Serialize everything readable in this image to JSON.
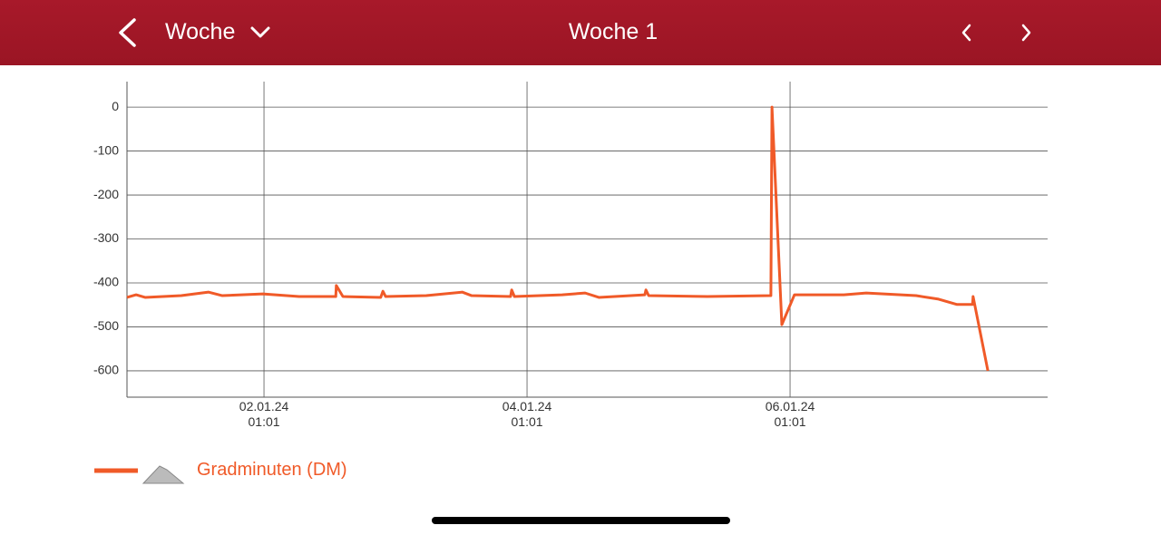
{
  "header": {
    "period_selector": "Woche",
    "title": "Woche 1"
  },
  "chart_data": {
    "type": "line",
    "x": [
      "2024-01-01T00:01",
      "2024-01-01T01:41",
      "2024-01-01T03:19",
      "2024-01-01T09:55",
      "2024-01-01T14:55",
      "2024-01-01T17:25",
      "2024-01-02T00:49",
      "2024-01-02T07:25",
      "2024-01-02T14:07",
      "2024-01-02T14:13",
      "2024-01-02T15:25",
      "2024-01-02T22:19",
      "2024-01-02T22:43",
      "2024-01-02T23:13",
      "2024-01-03T06:37",
      "2024-01-03T13:13",
      "2024-01-03T14:55",
      "2024-01-03T22:01",
      "2024-01-03T22:13",
      "2024-01-03T22:43",
      "2024-01-04T07:25",
      "2024-01-04T11:37",
      "2024-01-04T14:07",
      "2024-01-04T22:31",
      "2024-01-04T22:43",
      "2024-01-04T23:13",
      "2024-01-05T09:55",
      "2024-01-05T21:31",
      "2024-01-05T21:43",
      "2024-01-05T23:31",
      "2024-01-06T01:49",
      "2024-01-06T10:49",
      "2024-01-06T14:55",
      "2024-01-07T00:01",
      "2024-01-07T04:07",
      "2024-01-07T07:25",
      "2024-01-07T10:19",
      "2024-01-07T10:25",
      "2024-01-07T13:07"
    ],
    "series": [
      {
        "name": "Gradminuten (DM)",
        "color": "#f05a28",
        "values": [
          -433,
          -427,
          -433,
          -429,
          -421,
          -429,
          -425,
          -431,
          -431,
          -406,
          -431,
          -433,
          -419,
          -431,
          -429,
          -421,
          -429,
          -431,
          -416,
          -431,
          -427,
          -423,
          -433,
          -427,
          -416,
          -429,
          -431,
          -429,
          0,
          -495,
          -427,
          -427,
          -423,
          -429,
          -437,
          -449,
          -449,
          -431,
          -600
        ]
      }
    ],
    "xlim": [
      "2024-01-01T00:01",
      "2024-01-08T00:01"
    ],
    "xticks": [
      {
        "value": "2024-01-02T01:01",
        "label": "02.01.24\n01:01"
      },
      {
        "value": "2024-01-04T01:01",
        "label": "04.01.24\n01:01"
      },
      {
        "value": "2024-01-06T01:01",
        "label": "06.01.24\n01:01"
      }
    ],
    "ylim": [
      -660,
      58
    ],
    "yticks": [
      0,
      -100,
      -200,
      -300,
      -400,
      -500,
      -600
    ],
    "grid": true
  }
}
